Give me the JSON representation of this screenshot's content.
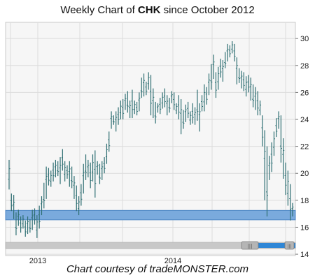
{
  "title": {
    "prefix": "Weekly Chart of ",
    "ticker": "CHK",
    "suffix": " since October 2012"
  },
  "credit": "Chart courtesy of tradeMONSTER.com",
  "colors": {
    "bar": "#2f6f73",
    "band": "#7aaadd",
    "band_edge": "#4d86c4",
    "grid": "#dcdcdc",
    "plot_bg": "#f6f6f6",
    "scroll_track": "#c8c8c8",
    "scroll_thumb": "#2e86d6"
  },
  "chart_data": {
    "type": "ohlc",
    "title": "Weekly Chart of CHK since October 2012",
    "xlabel": "",
    "ylabel": "",
    "ylim": [
      13.9,
      31.2
    ],
    "yticks": [
      14,
      16,
      18,
      20,
      22,
      24,
      26,
      28,
      30
    ],
    "xtick_labels": [
      "2013",
      "2014"
    ],
    "grid": true,
    "y_axis_side": "right",
    "support_band": {
      "low": 16.55,
      "high": 17.25
    },
    "weekly_bars": [
      [
        21.0,
        18.8
      ],
      [
        18.5,
        17.2
      ],
      [
        18.4,
        16.6
      ],
      [
        17.1,
        15.4
      ],
      [
        17.3,
        16.1
      ],
      [
        16.8,
        15.6
      ],
      [
        16.9,
        15.9
      ],
      [
        16.5,
        15.3
      ],
      [
        16.8,
        15.5
      ],
      [
        16.6,
        15.6
      ],
      [
        17.3,
        15.8
      ],
      [
        17.4,
        16.2
      ],
      [
        16.9,
        15.2
      ],
      [
        17.6,
        15.9
      ],
      [
        18.3,
        16.9
      ],
      [
        19.3,
        17.4
      ],
      [
        20.5,
        18.1
      ],
      [
        20.4,
        19.1
      ],
      [
        20.2,
        19.0
      ],
      [
        20.8,
        19.4
      ],
      [
        21.0,
        19.7
      ],
      [
        20.9,
        19.8
      ],
      [
        21.2,
        19.2
      ],
      [
        21.8,
        20.2
      ],
      [
        20.9,
        19.4
      ],
      [
        20.6,
        19.6
      ],
      [
        20.9,
        19.0
      ],
      [
        20.5,
        18.9
      ],
      [
        19.8,
        18.1
      ],
      [
        19.1,
        17.2
      ],
      [
        18.3,
        16.9
      ],
      [
        19.2,
        17.6
      ],
      [
        20.7,
        18.5
      ],
      [
        21.4,
        19.5
      ],
      [
        21.0,
        19.7
      ],
      [
        20.8,
        18.9
      ],
      [
        21.4,
        19.4
      ],
      [
        21.7,
        18.2
      ],
      [
        20.9,
        19.9
      ],
      [
        20.7,
        19.2
      ],
      [
        20.9,
        19.5
      ],
      [
        21.2,
        20.0
      ],
      [
        22.2,
        20.7
      ],
      [
        23.1,
        21.6
      ],
      [
        24.6,
        23.3
      ],
      [
        24.3,
        23.6
      ],
      [
        24.6,
        23.1
      ],
      [
        24.9,
        23.6
      ],
      [
        25.4,
        24.0
      ],
      [
        25.5,
        24.0
      ],
      [
        25.9,
        24.7
      ],
      [
        26.1,
        24.5
      ],
      [
        25.4,
        24.1
      ],
      [
        26.2,
        24.1
      ],
      [
        25.4,
        24.4
      ],
      [
        25.3,
        24.3
      ],
      [
        26.0,
        24.6
      ],
      [
        27.1,
        25.6
      ],
      [
        27.4,
        25.7
      ],
      [
        26.8,
        25.8
      ],
      [
        27.5,
        26.2
      ],
      [
        27.3,
        24.3
      ],
      [
        26.3,
        24.1
      ],
      [
        25.3,
        23.7
      ],
      [
        25.2,
        24.5
      ],
      [
        25.6,
        24.4
      ],
      [
        26.0,
        24.8
      ],
      [
        26.3,
        24.9
      ],
      [
        25.8,
        24.3
      ],
      [
        25.6,
        24.5
      ],
      [
        26.1,
        25.2
      ],
      [
        26.0,
        24.7
      ],
      [
        25.2,
        24.4
      ],
      [
        25.8,
        24.0
      ],
      [
        25.5,
        22.9
      ],
      [
        24.7,
        23.3
      ],
      [
        25.1,
        23.8
      ],
      [
        25.3,
        24.1
      ],
      [
        24.6,
        23.6
      ],
      [
        25.2,
        23.7
      ],
      [
        24.9,
        23.6
      ],
      [
        26.2,
        23.9
      ],
      [
        25.2,
        23.1
      ],
      [
        25.8,
        24.6
      ],
      [
        26.6,
        24.6
      ],
      [
        26.4,
        25.1
      ],
      [
        27.4,
        25.8
      ],
      [
        28.1,
        26.2
      ],
      [
        28.8,
        27.0
      ],
      [
        27.5,
        25.6
      ],
      [
        27.9,
        26.2
      ],
      [
        28.5,
        27.1
      ],
      [
        28.4,
        26.8
      ],
      [
        29.0,
        27.8
      ],
      [
        29.6,
        28.3
      ],
      [
        29.5,
        28.6
      ],
      [
        29.8,
        28.9
      ],
      [
        29.6,
        28.3
      ],
      [
        28.6,
        26.6
      ],
      [
        27.8,
        26.7
      ],
      [
        27.6,
        26.3
      ],
      [
        27.5,
        26.1
      ],
      [
        27.2,
        25.7
      ],
      [
        27.3,
        26.0
      ],
      [
        27.1,
        25.4
      ],
      [
        26.6,
        24.9
      ],
      [
        26.4,
        24.7
      ],
      [
        26.1,
        24.3
      ],
      [
        25.4,
        24.3
      ],
      [
        24.3,
        22.0
      ],
      [
        23.2,
        18.0
      ],
      [
        22.0,
        16.8
      ],
      [
        21.3,
        19.5
      ],
      [
        22.3,
        20.1
      ],
      [
        23.1,
        21.3
      ],
      [
        24.1,
        22.7
      ],
      [
        24.6,
        23.3
      ],
      [
        24.3,
        20.8
      ],
      [
        22.6,
        19.6
      ],
      [
        20.8,
        18.4
      ],
      [
        20.2,
        17.6
      ],
      [
        19.2,
        16.5
      ],
      [
        17.8,
        16.8
      ]
    ]
  },
  "scrollbar": {
    "handle_grip": "|||"
  }
}
